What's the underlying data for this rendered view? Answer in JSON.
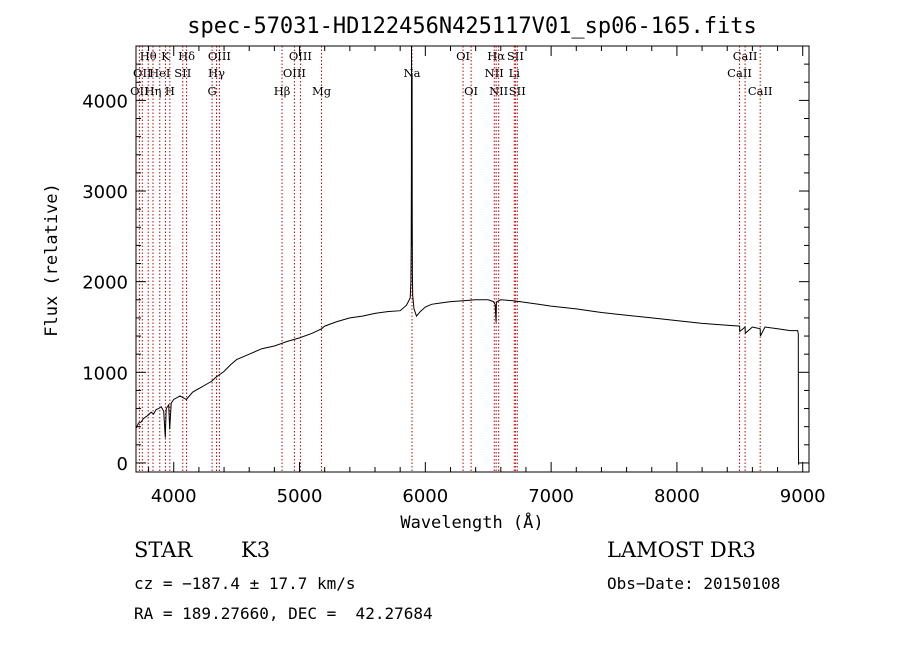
{
  "chart_data": {
    "type": "line",
    "title": "spec-57031-HD122456N425117V01_sp06-165.fits",
    "xlabel": "Wavelength (Å)",
    "ylabel": "Flux (relative)",
    "xlim": [
      3700,
      9050
    ],
    "ylim": [
      -100,
      4600
    ],
    "xticks": [
      4000,
      5000,
      6000,
      7000,
      8000,
      9000
    ],
    "yticks": [
      0,
      1000,
      2000,
      3000,
      4000
    ],
    "grid": false,
    "color": "#000000",
    "line_color": "#cc0000",
    "spectrum": {
      "x": [
        3700,
        3720,
        3740,
        3760,
        3780,
        3800,
        3820,
        3840,
        3860,
        3880,
        3900,
        3920,
        3933,
        3940,
        3960,
        3968,
        3980,
        4000,
        4050,
        4101,
        4150,
        4200,
        4250,
        4300,
        4340,
        4350,
        4400,
        4450,
        4500,
        4600,
        4700,
        4800,
        4861,
        4900,
        5000,
        5100,
        5175,
        5200,
        5300,
        5400,
        5500,
        5600,
        5700,
        5800,
        5850,
        5880,
        5885,
        5888,
        5889,
        5890,
        5891,
        5892,
        5893,
        5895,
        5896,
        5897,
        5898,
        5900,
        5910,
        5930,
        5960,
        6000,
        6050,
        6100,
        6200,
        6300,
        6400,
        6500,
        6540,
        6555,
        6563,
        6565,
        6570,
        6600,
        6700,
        6800,
        6900,
        7000,
        7200,
        7400,
        7600,
        7800,
        8000,
        8200,
        8400,
        8498,
        8500,
        8542,
        8544,
        8600,
        8662,
        8664,
        8700,
        8800,
        8900,
        8960,
        8965,
        8966,
        8967
      ],
      "y": [
        380,
        440,
        450,
        490,
        510,
        530,
        560,
        540,
        590,
        600,
        620,
        570,
        280,
        600,
        640,
        370,
        660,
        700,
        740,
        700,
        780,
        820,
        860,
        900,
        950,
        960,
        1010,
        1080,
        1140,
        1200,
        1260,
        1290,
        1320,
        1340,
        1380,
        1430,
        1480,
        1510,
        1560,
        1600,
        1620,
        1650,
        1670,
        1680,
        1740,
        1820,
        2000,
        2400,
        3200,
        4600,
        4300,
        2800,
        2400,
        4300,
        2900,
        2100,
        2000,
        1850,
        1700,
        1620,
        1670,
        1720,
        1750,
        1760,
        1780,
        1790,
        1800,
        1800,
        1780,
        1750,
        1550,
        1760,
        1780,
        1800,
        1790,
        1770,
        1750,
        1730,
        1700,
        1660,
        1630,
        1600,
        1570,
        1540,
        1520,
        1510,
        1450,
        1500,
        1430,
        1500,
        1480,
        1400,
        1500,
        1480,
        1460,
        1460,
        1420,
        200,
        -20
      ]
    },
    "lines": [
      {
        "w": 3727,
        "label": "OII",
        "row": 2
      },
      {
        "w": 3750,
        "label": "OII",
        "row": 1
      },
      {
        "w": 3797,
        "label": "Hθ",
        "row": 0
      },
      {
        "w": 3835,
        "label": "Hη",
        "row": 2
      },
      {
        "w": 3889,
        "label": "HeI",
        "row": 1
      },
      {
        "w": 3934,
        "label": "K",
        "row": 0
      },
      {
        "w": 3969,
        "label": "H",
        "row": 2
      },
      {
        "w": 4072,
        "label": "SII",
        "row": 1
      },
      {
        "w": 4102,
        "label": "Hδ",
        "row": 0
      },
      {
        "w": 4305,
        "label": "G",
        "row": 2
      },
      {
        "w": 4340,
        "label": "Hγ",
        "row": 1
      },
      {
        "w": 4363,
        "label": "OIII",
        "row": 0
      },
      {
        "w": 4861,
        "label": "Hβ",
        "row": 2
      },
      {
        "w": 4959,
        "label": "OIII",
        "row": 1
      },
      {
        "w": 5007,
        "label": "OIII",
        "row": 0
      },
      {
        "w": 5175,
        "label": "Mg",
        "row": 2
      },
      {
        "w": 5894,
        "label": "Na",
        "row": 1
      },
      {
        "w": 6300,
        "label": "OI",
        "row": 0
      },
      {
        "w": 6364,
        "label": "OI",
        "row": 2
      },
      {
        "w": 6548,
        "label": "NII",
        "row": 1
      },
      {
        "w": 6563,
        "label": "Hα",
        "row": 0
      },
      {
        "w": 6583,
        "label": "NII",
        "row": 2
      },
      {
        "w": 6707,
        "label": "Li",
        "row": 1
      },
      {
        "w": 6716,
        "label": "SII",
        "row": 0
      },
      {
        "w": 6731,
        "label": "SII",
        "row": 2
      },
      {
        "w": 8498,
        "label": "CaII",
        "row": 1
      },
      {
        "w": 8542,
        "label": "CaII",
        "row": 0
      },
      {
        "w": 8662,
        "label": "CaII",
        "row": 2
      }
    ]
  },
  "info": {
    "class": "STAR",
    "subclass": "K3",
    "survey": "LAMOST DR3",
    "cz": "cz = −187.4 ± 17.7 km/s",
    "obs_date": "Obs−Date: 20150108",
    "radec": "RA = 189.27660, DEC =  42.27684"
  }
}
